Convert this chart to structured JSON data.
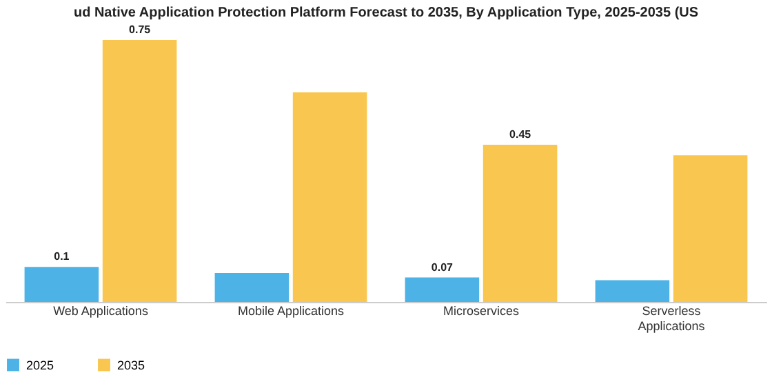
{
  "chart_data": {
    "type": "bar",
    "title": "ud Native Application Protection Platform Forecast to 2035, By Application Type, 2025-2035 (US",
    "categories": [
      "Web Applications",
      "Mobile Applications",
      "Microservices",
      "Serverless Applications"
    ],
    "series": [
      {
        "name": "2025",
        "color": "#4db3e6",
        "values": [
          0.1,
          0.083,
          0.07,
          0.062
        ],
        "value_labels": [
          "0.1",
          null,
          "0.07",
          null
        ]
      },
      {
        "name": "2035",
        "color": "#f9c74f",
        "values": [
          0.75,
          0.6,
          0.45,
          0.42
        ],
        "value_labels": [
          "0.75",
          null,
          "0.45",
          null
        ]
      }
    ],
    "legend": "bottom",
    "grid": false
  }
}
